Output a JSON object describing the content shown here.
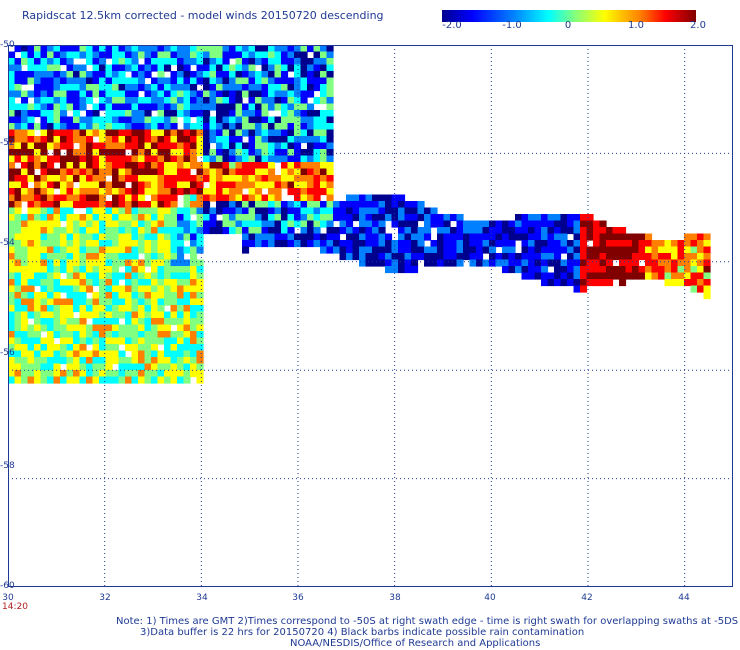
{
  "title": "Rapidscat 12.5km corrected - model winds 20150720 descending",
  "colorbar": {
    "ticks": [
      "-2.0",
      "-1.0",
      "0",
      "1.0",
      "2.0"
    ],
    "tick_values": [
      -2.0,
      -1.0,
      0,
      1.0,
      2.0
    ],
    "colors": [
      "#00008f",
      "#0000ff",
      "#0080ff",
      "#00ffff",
      "#80ff80",
      "#ffff00",
      "#ff8000",
      "#ff0000",
      "#800000"
    ]
  },
  "axes": {
    "y_labels": [
      "-50",
      "-52",
      "-54",
      "-56",
      "-58",
      "-60"
    ],
    "x_labels": [
      "30",
      "32",
      "34",
      "36",
      "38",
      "40",
      "42",
      "44"
    ],
    "x_range": [
      30,
      45
    ],
    "y_range": [
      -60,
      -50
    ],
    "gridline_color": "#1f3a93"
  },
  "time_label": "14:20",
  "notes": {
    "line1": "Note: 1) Times are GMT 2)Times correspond to -50S at right swath edge - time is right swath for overlapping swaths at -5DS",
    "line2": "3)Data buffer is 22 hrs for 20150720 4) Black barbs indicate possible rain contamination",
    "line3": "NOAA/NESDIS/Office of Research and Applications"
  },
  "swath": {
    "regions": [
      {
        "name": "main-block",
        "lon": [
          30.0,
          34.0
        ],
        "lat": [
          -56.2,
          -50.0
        ]
      },
      {
        "name": "upper-extension",
        "lon": [
          34.0,
          36.7
        ],
        "lat": [
          -53.5,
          -50.0
        ]
      },
      {
        "name": "tail",
        "lon": [
          34.8,
          44.5
        ],
        "lat": [
          -55.0,
          -52.3
        ]
      }
    ]
  }
}
